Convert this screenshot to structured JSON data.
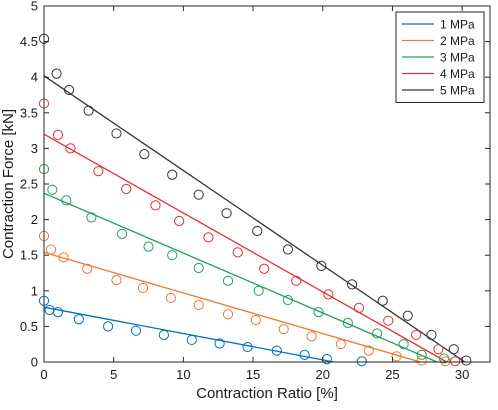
{
  "chart_data": {
    "type": "scatter",
    "title": "",
    "xlabel": "Contraction Ratio [%]",
    "ylabel": "Contraction Force [kN]",
    "xlim": [
      0,
      32
    ],
    "ylim": [
      0,
      5
    ],
    "xticks": [
      "0",
      "5",
      "10",
      "15",
      "20",
      "25",
      "30"
    ],
    "yticks": [
      "0",
      "0.5",
      "1",
      "1.5",
      "2",
      "2.5",
      "3",
      "3.5",
      "4",
      "4.5",
      "5"
    ],
    "grid": false,
    "legend_position": "top-right",
    "series": [
      {
        "name": "1 MPa",
        "color": "#0072BD",
        "points": [
          [
            0,
            0.86
          ],
          [
            0.4,
            0.73
          ],
          [
            1,
            0.7
          ],
          [
            2.5,
            0.6
          ],
          [
            4.6,
            0.5
          ],
          [
            6.6,
            0.44
          ],
          [
            8.6,
            0.38
          ],
          [
            10.6,
            0.31
          ],
          [
            12.6,
            0.26
          ],
          [
            14.6,
            0.21
          ],
          [
            16.7,
            0.16
          ],
          [
            18.7,
            0.1
          ],
          [
            20.3,
            0.04
          ],
          [
            22.8,
            0.01
          ]
        ],
        "fit": [
          [
            0,
            0.77
          ],
          [
            20.8,
            0
          ]
        ]
      },
      {
        "name": "2 MPa",
        "color": "#EE7733",
        "points": [
          [
            0,
            1.77
          ],
          [
            0.5,
            1.58
          ],
          [
            1.4,
            1.47
          ],
          [
            3.1,
            1.31
          ],
          [
            5.2,
            1.15
          ],
          [
            7.1,
            1.04
          ],
          [
            9.1,
            0.9
          ],
          [
            11.1,
            0.8
          ],
          [
            13.2,
            0.67
          ],
          [
            15.2,
            0.59
          ],
          [
            17.2,
            0.46
          ],
          [
            19.2,
            0.36
          ],
          [
            21.3,
            0.25
          ],
          [
            23.3,
            0.16
          ],
          [
            25.3,
            0.08
          ],
          [
            27.1,
            0.02
          ],
          [
            28.8,
            0.01
          ]
        ],
        "fit": [
          [
            0,
            1.54
          ],
          [
            27,
            0
          ]
        ]
      },
      {
        "name": "3 MPa",
        "color": "#22A05A",
        "points": [
          [
            0,
            2.71
          ],
          [
            0.6,
            2.42
          ],
          [
            1.6,
            2.27
          ],
          [
            3.4,
            2.03
          ],
          [
            5.6,
            1.8
          ],
          [
            7.5,
            1.62
          ],
          [
            9.2,
            1.5
          ],
          [
            11.1,
            1.32
          ],
          [
            13.2,
            1.14
          ],
          [
            15.4,
            1.0
          ],
          [
            17.5,
            0.87
          ],
          [
            19.7,
            0.7
          ],
          [
            21.8,
            0.55
          ],
          [
            23.9,
            0.4
          ],
          [
            25.8,
            0.25
          ],
          [
            27.1,
            0.1
          ],
          [
            28.7,
            0.05
          ]
        ],
        "fit": [
          [
            0,
            2.37
          ],
          [
            28.2,
            0
          ]
        ]
      },
      {
        "name": "4 MPa",
        "color": "#E0303A",
        "points": [
          [
            0,
            3.63
          ],
          [
            1,
            3.19
          ],
          [
            1.9,
            3.0
          ],
          [
            3.9,
            2.68
          ],
          [
            5.9,
            2.43
          ],
          [
            8,
            2.2
          ],
          [
            9.7,
            1.98
          ],
          [
            11.8,
            1.75
          ],
          [
            13.9,
            1.54
          ],
          [
            15.8,
            1.31
          ],
          [
            18.1,
            1.14
          ],
          [
            20.4,
            0.95
          ],
          [
            22.6,
            0.76
          ],
          [
            24.7,
            0.58
          ],
          [
            26.7,
            0.38
          ],
          [
            28.3,
            0.18
          ],
          [
            29.5,
            0.01
          ]
        ],
        "fit": [
          [
            0,
            3.2
          ],
          [
            28.9,
            0
          ]
        ]
      },
      {
        "name": "5 MPa",
        "color": "#333333",
        "points": [
          [
            0,
            4.54
          ],
          [
            0.9,
            4.05
          ],
          [
            1.8,
            3.82
          ],
          [
            3.2,
            3.53
          ],
          [
            5.2,
            3.21
          ],
          [
            7.2,
            2.92
          ],
          [
            9.2,
            2.63
          ],
          [
            11.1,
            2.35
          ],
          [
            13.1,
            2.09
          ],
          [
            15.3,
            1.84
          ],
          [
            17.5,
            1.58
          ],
          [
            19.9,
            1.35
          ],
          [
            22.1,
            1.09
          ],
          [
            24.3,
            0.86
          ],
          [
            26.1,
            0.65
          ],
          [
            27.8,
            0.38
          ],
          [
            29.4,
            0.18
          ],
          [
            30.3,
            0.02
          ]
        ],
        "fit": [
          [
            0,
            4.02
          ],
          [
            30.2,
            0
          ]
        ]
      }
    ]
  }
}
